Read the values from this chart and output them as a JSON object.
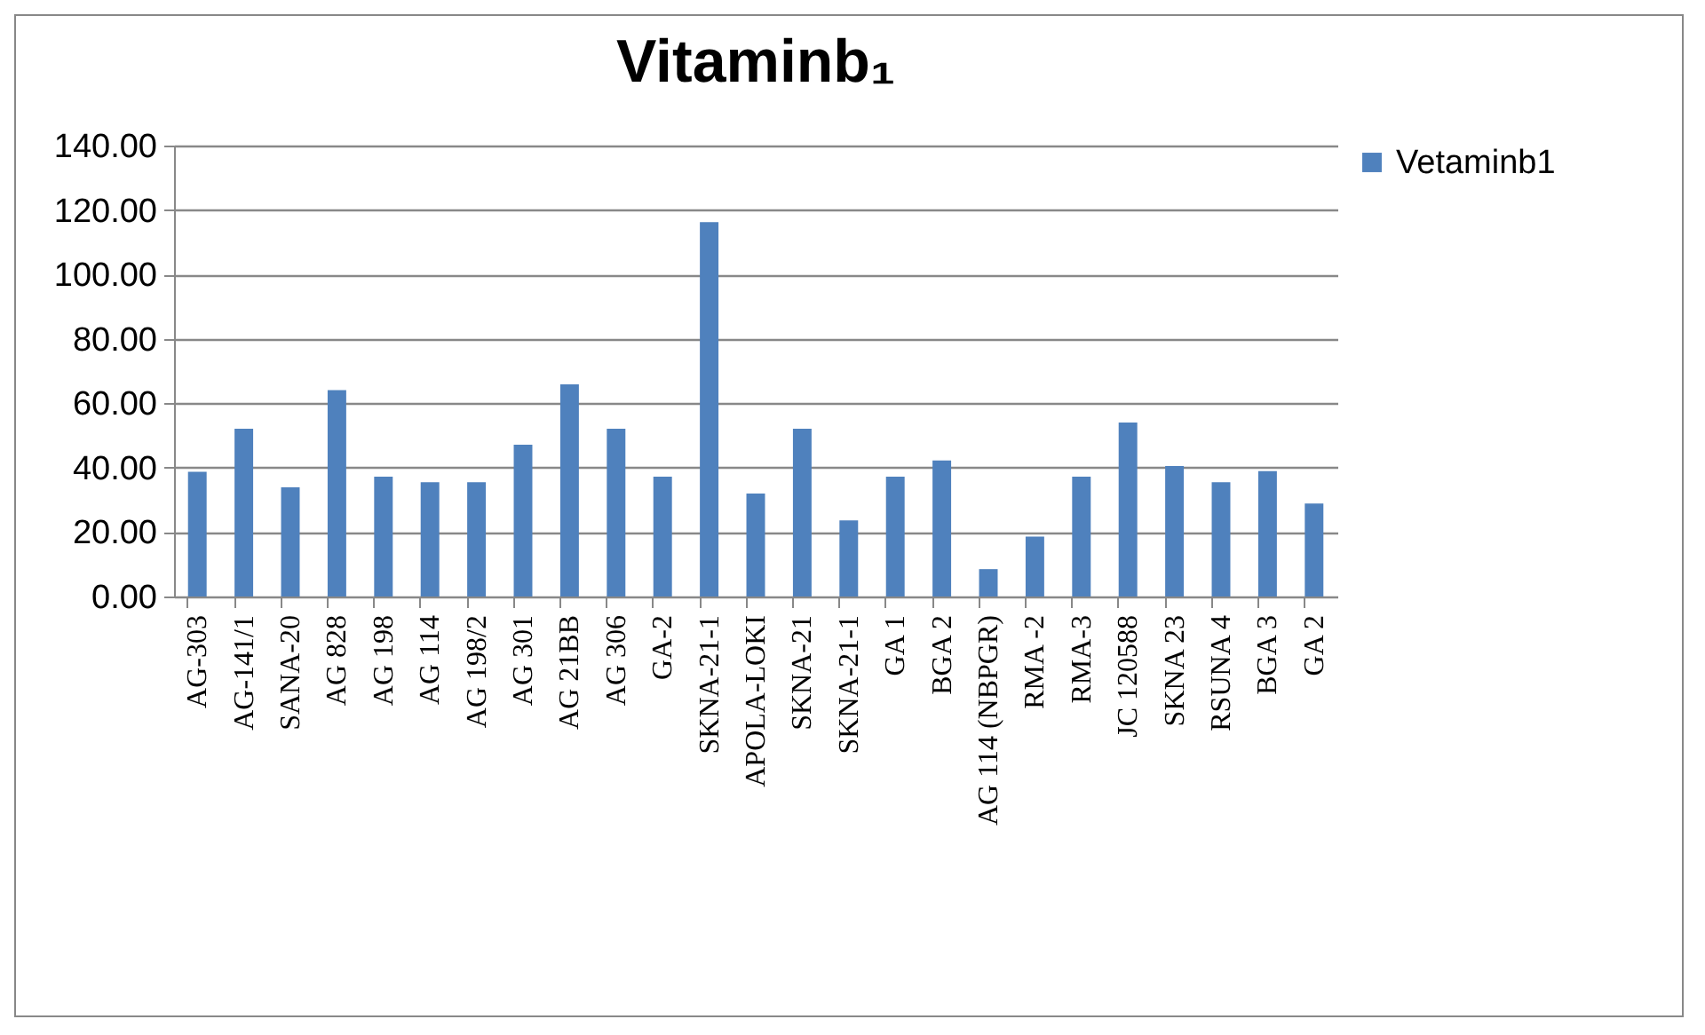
{
  "chart_data": {
    "type": "bar",
    "title": "Vitaminb₁",
    "categories": [
      "AG-303",
      "AG-141/1",
      "SANA-20",
      "AG 828",
      "AG 198",
      "AG 114",
      "AG 198/2",
      "AG 301",
      "AG 21BB",
      "AG 306",
      "GA-2",
      "SKNA-21-1",
      "APOLA-LOKI",
      "SKNA-21",
      "SKNA-21-1",
      "GA 1",
      "BGA 2",
      "AG 114 (NBPGR)",
      "RMA -2",
      "RMA-3",
      "JC 120588",
      "SKNA 23",
      "RSUNA 4",
      "BGA 3",
      "GA 2"
    ],
    "series": [
      {
        "name": "Vetaminb1",
        "color": "#4f81bd",
        "values": [
          38.7,
          52.1,
          33.9,
          64.1,
          37.2,
          35.5,
          35.5,
          47.1,
          65.9,
          52.1,
          37.2,
          116.2,
          32.0,
          52.1,
          23.6,
          37.2,
          42.2,
          8.5,
          18.6,
          37.2,
          54.0,
          40.5,
          35.5,
          38.9,
          28.9
        ]
      }
    ],
    "ylim": [
      0,
      140
    ],
    "yticks": [
      {
        "value": 0,
        "label": "0.00"
      },
      {
        "value": 20,
        "label": "20.00"
      },
      {
        "value": 40,
        "label": "40.00"
      },
      {
        "value": 60,
        "label": "60.00"
      },
      {
        "value": 80,
        "label": "80.00"
      },
      {
        "value": 100,
        "label": "100.00"
      },
      {
        "value": 120,
        "label": "120.00"
      },
      {
        "value": 140,
        "label": "140.00"
      }
    ],
    "grid": "y",
    "legend": "right"
  }
}
